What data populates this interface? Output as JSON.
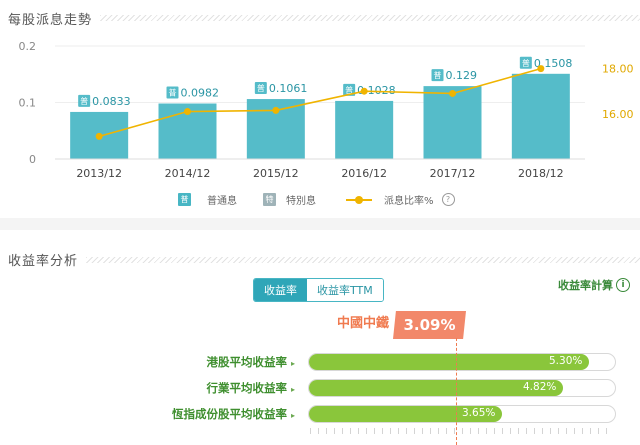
{
  "dividend_section": {
    "title": "每股派息走勢",
    "legend": {
      "regular": "普通息",
      "special": "特別息",
      "payout": "派息比率%",
      "regular_icon": "普",
      "special_icon": "特",
      "help": "?"
    }
  },
  "chart_data": {
    "type": "bar",
    "categories": [
      "2013/12",
      "2014/12",
      "2015/12",
      "2016/12",
      "2017/12",
      "2018/12"
    ],
    "series": [
      {
        "name": "普通息",
        "type": "bar",
        "axis": "left",
        "values": [
          0.0833,
          0.0982,
          0.1061,
          0.1028,
          0.129,
          0.1508
        ],
        "labels": [
          "0.0833",
          "0.0982",
          "0.1061",
          "0.1028",
          "0.129",
          "0.1508"
        ],
        "label_icon": "普"
      },
      {
        "name": "派息比率%",
        "type": "line",
        "axis": "right",
        "values": [
          15.0,
          16.1,
          16.15,
          17.0,
          16.9,
          18.0
        ]
      }
    ],
    "ylim_left": [
      0,
      0.2
    ],
    "yticks_left": [
      0,
      0.1,
      0.2
    ],
    "ytick_labels_left": [
      "0",
      "0.1",
      "0.2"
    ],
    "ylim_right": [
      14.0,
      19.0
    ],
    "yticks_right": [
      16,
      18
    ],
    "ytick_labels_right": [
      "16.00",
      "18.00"
    ],
    "colors": {
      "bar": "#55bcc9",
      "line": "#f0b400",
      "left_axis": "#888888",
      "right_axis": "#e0a800",
      "label": "#2a95a4"
    }
  },
  "yield_section": {
    "title": "收益率分析",
    "tabs": [
      {
        "label": "收益率",
        "active": true
      },
      {
        "label": "收益率TTM",
        "active": false
      }
    ],
    "calc_link": "收益率計算",
    "info_icon": "i",
    "company": "中國中鐵",
    "company_yield": "3.09%",
    "bars": [
      {
        "label": "港股平均收益率",
        "value": 5.3,
        "text": "5.30%"
      },
      {
        "label": "行業平均收益率",
        "value": 4.82,
        "text": "4.82%"
      },
      {
        "label": "恆指成份股平均收益率",
        "value": 3.65,
        "text": "3.65%"
      }
    ]
  }
}
